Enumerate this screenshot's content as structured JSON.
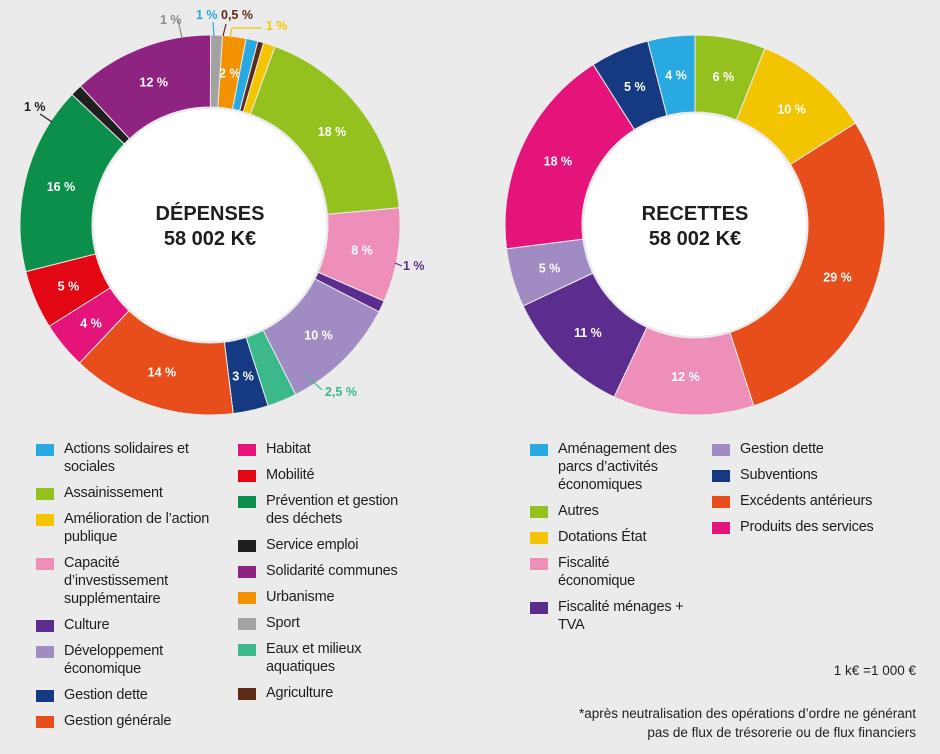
{
  "chart_data": [
    {
      "type": "pie",
      "center_title": "DÉPENSES",
      "center_value": "58 002 K€",
      "slices": [
        {
          "name": "Assainissement",
          "value": 18,
          "label": "18 %",
          "color": "#95c11f"
        },
        {
          "name": "Capacité d'investissement supplémentaire",
          "value": 8,
          "label": "8 %",
          "color": "#ee8fba"
        },
        {
          "name": "Culture",
          "value": 1,
          "label": "1 %",
          "color": "#5b2d8e"
        },
        {
          "name": "Développement économique",
          "value": 10,
          "label": "10 %",
          "color": "#a08bc2"
        },
        {
          "name": "Eaux et milieux aquatiques",
          "value": 2.5,
          "label": "2,5 %",
          "color": "#3cb98a"
        },
        {
          "name": "Gestion dette",
          "value": 3,
          "label": "3 %",
          "color": "#163a82"
        },
        {
          "name": "Gestion générale",
          "value": 14,
          "label": "14 %",
          "color": "#e84e1b"
        },
        {
          "name": "Habitat",
          "value": 4,
          "label": "4 %",
          "color": "#e5147a"
        },
        {
          "name": "Mobilité",
          "value": 5,
          "label": "5 %",
          "color": "#e30613"
        },
        {
          "name": "Prévention et gestion des déchets",
          "value": 16,
          "label": "16 %",
          "color": "#0b8f4a"
        },
        {
          "name": "Service emploi",
          "value": 1,
          "label": "1 %",
          "color": "#1f1f1f"
        },
        {
          "name": "Solidarité communes",
          "value": 12,
          "label": "12 %",
          "color": "#8e2381"
        },
        {
          "name": "Sport",
          "value": 1,
          "label": "1 %",
          "color": "#a2a2a2"
        },
        {
          "name": "Urbanisme",
          "value": 2,
          "label": "2 %",
          "color": "#f39200"
        },
        {
          "name": "Actions solidaires et sociales",
          "value": 1,
          "label": "1 %",
          "color": "#29a9e1"
        },
        {
          "name": "Agriculture",
          "value": 0.5,
          "label": "0,5 %",
          "color": "#5c2a15"
        },
        {
          "name": "Amélioration de l'action publique",
          "value": 1,
          "label": "1 %",
          "color": "#f2c500"
        }
      ]
    },
    {
      "type": "pie",
      "center_title": "RECETTES",
      "center_value": "58 002 K€",
      "slices": [
        {
          "name": "Autres",
          "value": 6,
          "label": "6 %",
          "color": "#95c11f"
        },
        {
          "name": "Dotations État",
          "value": 10,
          "label": "10 %",
          "color": "#f2c500"
        },
        {
          "name": "Excédents antérieurs",
          "value": 29,
          "label": "29 %",
          "color": "#e84e1b"
        },
        {
          "name": "Fiscalité économique",
          "value": 12,
          "label": "12 %",
          "color": "#ee8fba"
        },
        {
          "name": "Fiscalité ménages + TVA",
          "value": 11,
          "label": "11 %",
          "color": "#5b2d8e"
        },
        {
          "name": "Gestion dette",
          "value": 5,
          "label": "5 %",
          "color": "#a08bc2"
        },
        {
          "name": "Produits des services",
          "value": 18,
          "label": "18 %",
          "color": "#e5147a"
        },
        {
          "name": "Subventions",
          "value": 5,
          "label": "5 %",
          "color": "#163a82"
        },
        {
          "name": "Aménagement des parcs d'activités économiques",
          "value": 4,
          "label": "4 %",
          "color": "#29a9e1"
        }
      ]
    }
  ],
  "legend_depenses": [
    [
      {
        "label": "Actions solidaires et sociales",
        "color": "#29a9e1"
      },
      {
        "label": "Assainissement",
        "color": "#95c11f"
      },
      {
        "label": "Amélioration de l’action publique",
        "color": "#f2c500"
      },
      {
        "label": "Capacité d’investissement supplémentaire",
        "color": "#ee8fba"
      },
      {
        "label": "Culture",
        "color": "#5b2d8e"
      },
      {
        "label": "Développement économique",
        "color": "#a08bc2"
      },
      {
        "label": "Gestion dette",
        "color": "#163a82"
      },
      {
        "label": "Gestion générale",
        "color": "#e84e1b"
      }
    ],
    [
      {
        "label": "Habitat",
        "color": "#e5147a"
      },
      {
        "label": "Mobilité",
        "color": "#e30613"
      },
      {
        "label": "Prévention et gestion des déchets",
        "color": "#0b8f4a"
      },
      {
        "label": "Service emploi",
        "color": "#1f1f1f"
      },
      {
        "label": "Solidarité communes",
        "color": "#8e2381"
      },
      {
        "label": "Urbanisme",
        "color": "#f39200"
      },
      {
        "label": "Sport",
        "color": "#a2a2a2"
      },
      {
        "label": "Eaux et milieux aquatiques",
        "color": "#3cb98a"
      },
      {
        "label": "Agriculture",
        "color": "#5c2a15"
      }
    ]
  ],
  "legend_recettes": [
    [
      {
        "label": "Aménagement des parcs d’activités économiques",
        "color": "#29a9e1"
      },
      {
        "label": "Autres",
        "color": "#95c11f"
      },
      {
        "label": "Dotations État",
        "color": "#f2c500"
      },
      {
        "label": "Fiscalité économique",
        "color": "#ee8fba"
      },
      {
        "label": "Fiscalité ménages + TVA",
        "color": "#5b2d8e"
      }
    ],
    [
      {
        "label": "Gestion dette",
        "color": "#a08bc2"
      },
      {
        "label": "Subventions",
        "color": "#163a82"
      },
      {
        "label": "Excédents antérieurs",
        "color": "#e84e1b"
      },
      {
        "label": "Produits des services",
        "color": "#e5147a"
      }
    ]
  ],
  "notes": {
    "unit": "1 k€ =1 000 €",
    "footnote_line1": "*après neutralisation des opérations d’ordre ne générant",
    "footnote_line2": "pas de flux de trésorerie ou de flux financiers"
  }
}
